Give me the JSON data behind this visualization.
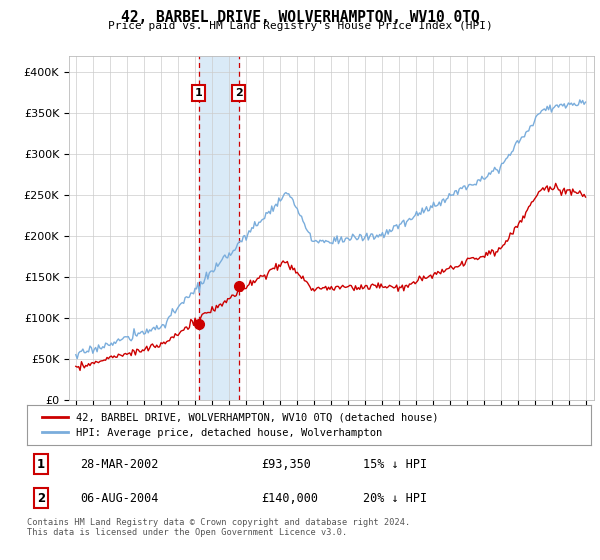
{
  "title": "42, BARBEL DRIVE, WOLVERHAMPTON, WV10 0TQ",
  "subtitle": "Price paid vs. HM Land Registry's House Price Index (HPI)",
  "sale1_label": "28-MAR-2002",
  "sale1_price": 93350,
  "sale1_hpi_diff": "15% ↓ HPI",
  "sale2_label": "06-AUG-2004",
  "sale2_price": 140000,
  "sale2_hpi_diff": "20% ↓ HPI",
  "legend_red": "42, BARBEL DRIVE, WOLVERHAMPTON, WV10 0TQ (detached house)",
  "legend_blue": "HPI: Average price, detached house, Wolverhampton",
  "footer": "Contains HM Land Registry data © Crown copyright and database right 2024.\nThis data is licensed under the Open Government Licence v3.0.",
  "hpi_color": "#7aaddc",
  "price_color": "#cc0000",
  "highlight_color": "#daeaf7",
  "ylim_min": 0,
  "ylim_max": 420000,
  "sale1_t": 2002.23,
  "sale2_t": 2004.59
}
